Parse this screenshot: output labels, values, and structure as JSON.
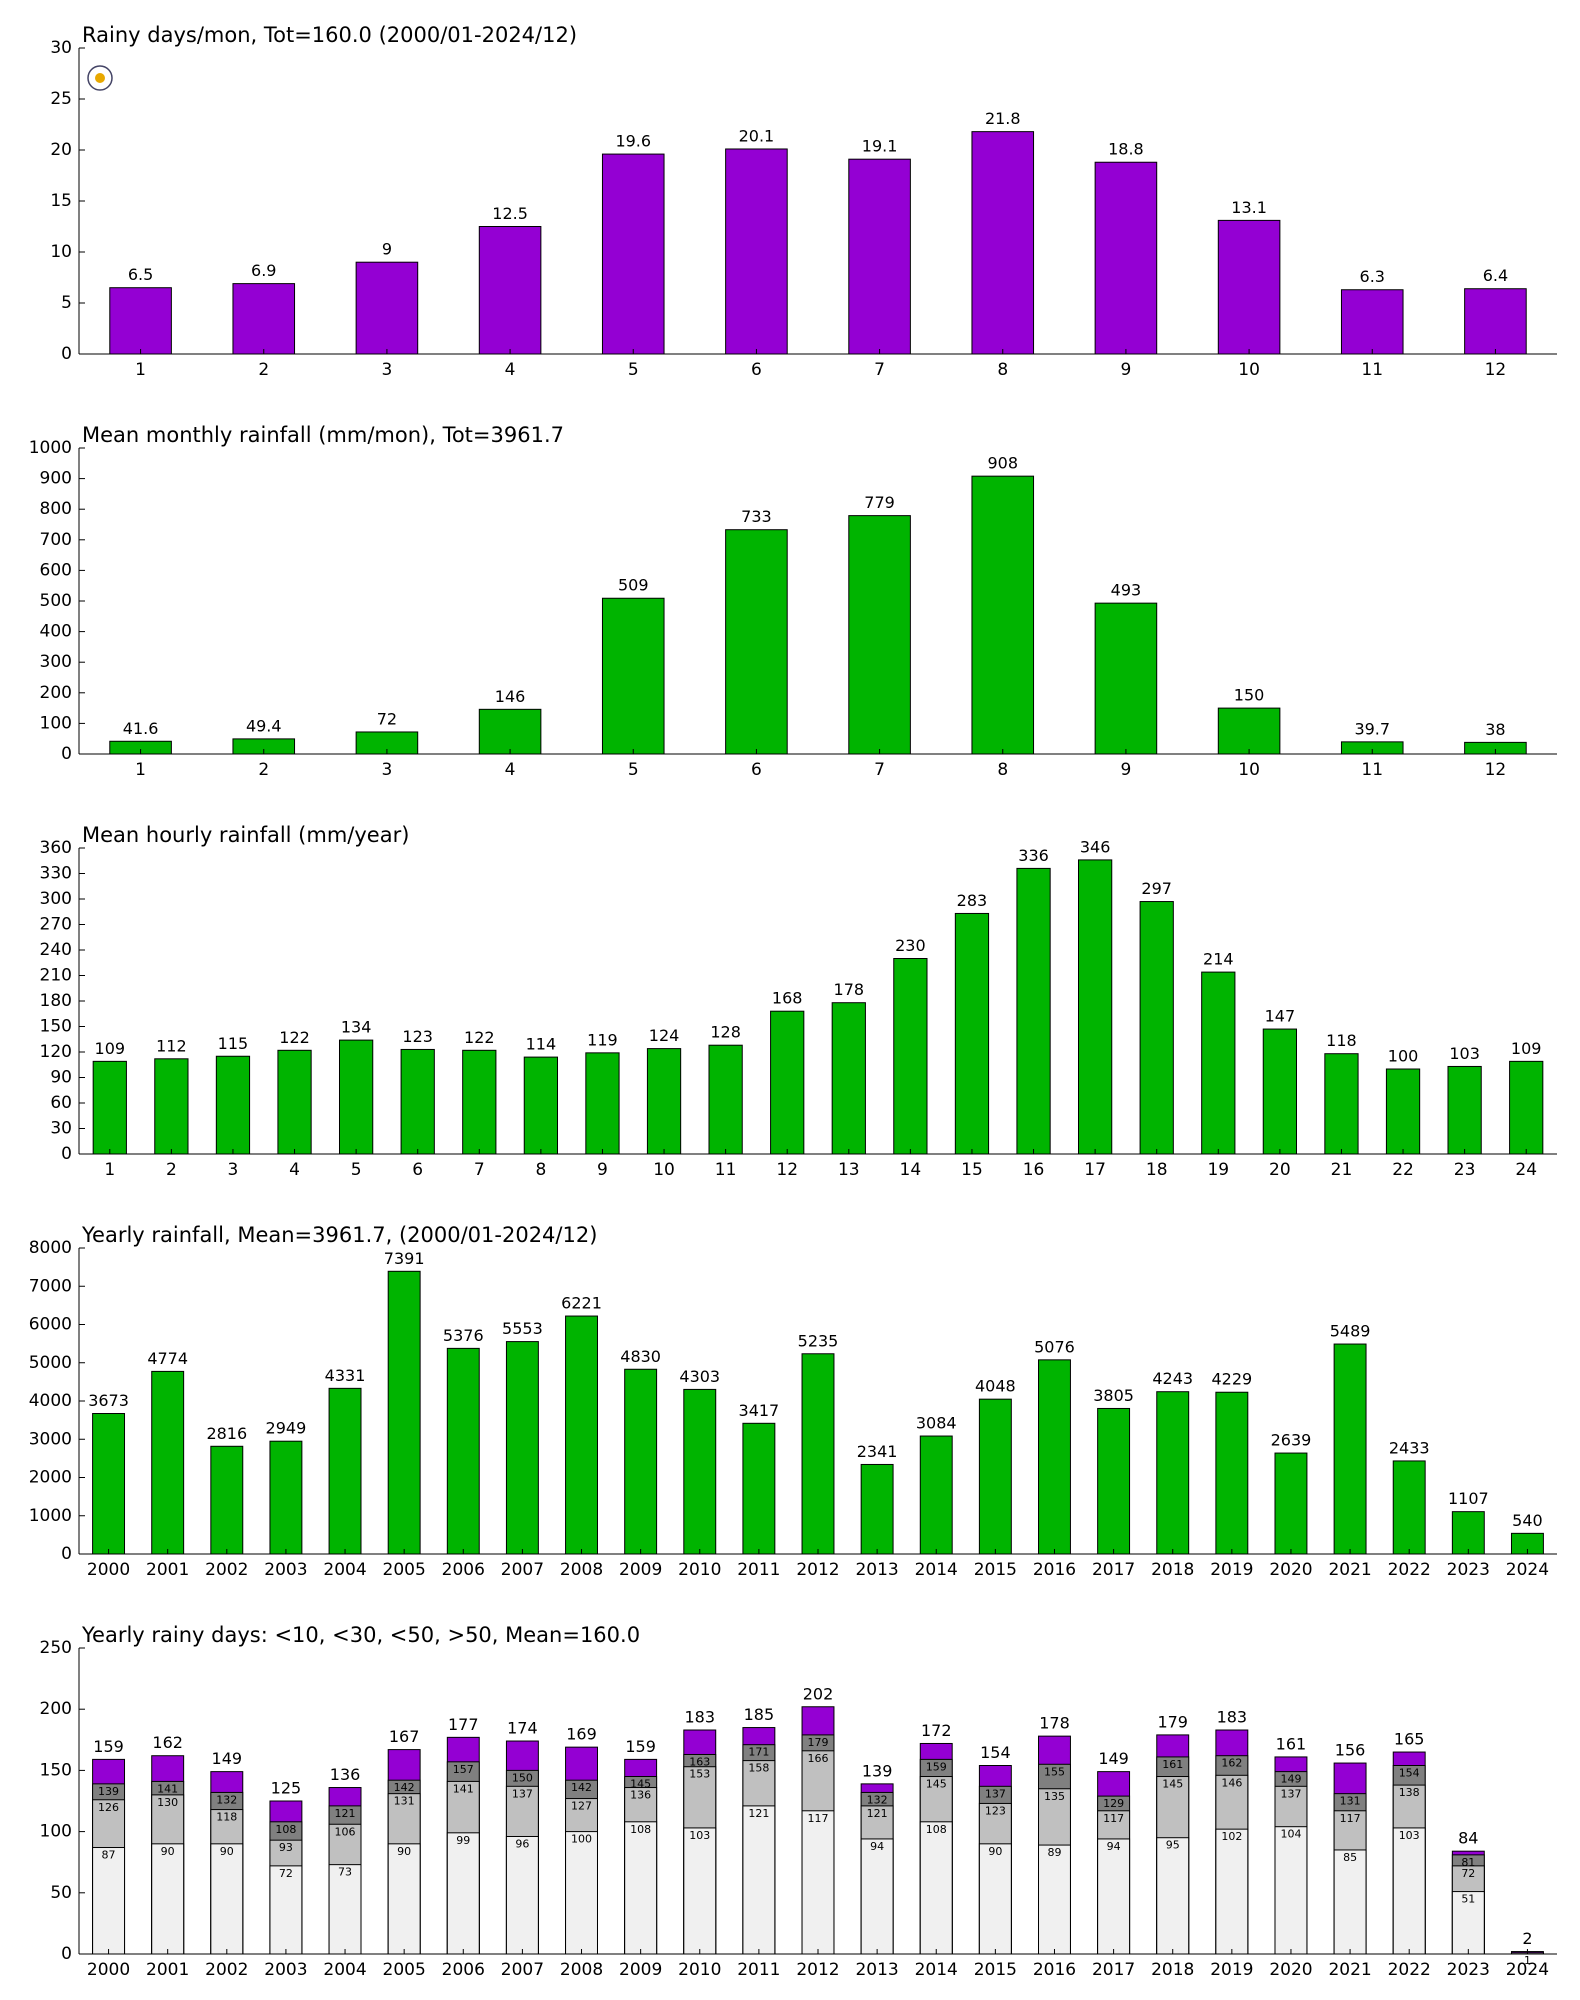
{
  "chart_data": [
    {
      "type": "bar",
      "title": "Rainy days/mon, Tot=160.0 (2000/01-2024/12)",
      "categories": [
        "1",
        "2",
        "3",
        "4",
        "5",
        "6",
        "7",
        "8",
        "9",
        "10",
        "11",
        "12"
      ],
      "values": [
        6.5,
        6.9,
        9,
        12.5,
        19.6,
        20.1,
        19.1,
        21.8,
        18.8,
        13.1,
        6.3,
        6.4
      ],
      "color": "#9400d3",
      "ylim": [
        0,
        30
      ],
      "yticks": [
        0,
        5,
        10,
        15,
        20,
        25,
        30
      ]
    },
    {
      "type": "bar",
      "title": "Mean monthly rainfall (mm/mon), Tot=3961.7",
      "categories": [
        "1",
        "2",
        "3",
        "4",
        "5",
        "6",
        "7",
        "8",
        "9",
        "10",
        "11",
        "12"
      ],
      "values": [
        41.6,
        49.4,
        72,
        146,
        509,
        733,
        779,
        908,
        493,
        150,
        39.7,
        38
      ],
      "color": "#00b400",
      "ylim": [
        0,
        1000
      ],
      "yticks": [
        0,
        100,
        200,
        300,
        400,
        500,
        600,
        700,
        800,
        900,
        1000
      ]
    },
    {
      "type": "bar",
      "title": "Mean hourly rainfall (mm/year)",
      "categories": [
        "1",
        "2",
        "3",
        "4",
        "5",
        "6",
        "7",
        "8",
        "9",
        "10",
        "11",
        "12",
        "13",
        "14",
        "15",
        "16",
        "17",
        "18",
        "19",
        "20",
        "21",
        "22",
        "23",
        "24"
      ],
      "values": [
        109,
        112,
        115,
        122,
        134,
        123,
        122,
        114,
        119,
        124,
        128,
        168,
        178,
        230,
        283,
        336,
        346,
        297,
        214,
        147,
        118,
        100,
        103,
        109
      ],
      "color": "#00b400",
      "ylim": [
        0,
        360
      ],
      "yticks": [
        0,
        30,
        60,
        90,
        120,
        150,
        180,
        210,
        240,
        270,
        300,
        330,
        360
      ]
    },
    {
      "type": "bar",
      "title": "Yearly rainfall, Mean=3961.7, (2000/01-2024/12)",
      "categories": [
        "2000",
        "2001",
        "2002",
        "2003",
        "2004",
        "2005",
        "2006",
        "2007",
        "2008",
        "2009",
        "2010",
        "2011",
        "2012",
        "2013",
        "2014",
        "2015",
        "2016",
        "2017",
        "2018",
        "2019",
        "2020",
        "2021",
        "2022",
        "2023",
        "2024"
      ],
      "values": [
        3673,
        4774,
        2816,
        2949,
        4331,
        7391,
        5376,
        5553,
        6221,
        4830,
        4303,
        3417,
        5235,
        2341,
        3084,
        4048,
        5076,
        3805,
        4243,
        4229,
        2639,
        5489,
        2433,
        1107,
        540
      ],
      "color": "#00b400",
      "ylim": [
        0,
        8000
      ],
      "yticks": [
        0,
        1000,
        2000,
        3000,
        4000,
        5000,
        6000,
        7000,
        8000
      ]
    },
    {
      "type": "bar",
      "title": "Yearly rainy days: <10, <30, <50, >50, Mean=160.0",
      "categories": [
        "2000",
        "2001",
        "2002",
        "2003",
        "2004",
        "2005",
        "2006",
        "2007",
        "2008",
        "2009",
        "2010",
        "2011",
        "2012",
        "2013",
        "2014",
        "2015",
        "2016",
        "2017",
        "2018",
        "2019",
        "2020",
        "2021",
        "2022",
        "2023",
        "2024"
      ],
      "series": [
        {
          "color": "#9400d3",
          "values": [
            159,
            162,
            149,
            125,
            136,
            167,
            177,
            174,
            169,
            159,
            183,
            185,
            202,
            139,
            172,
            154,
            178,
            149,
            179,
            183,
            161,
            156,
            165,
            84,
            2
          ]
        },
        {
          "color": "#808080",
          "values": [
            139,
            141,
            132,
            108,
            121,
            142,
            157,
            150,
            142,
            145,
            163,
            171,
            179,
            132,
            159,
            137,
            155,
            129,
            161,
            162,
            149,
            131,
            154,
            81,
            null
          ]
        },
        {
          "color": "#c0c0c0",
          "values": [
            126,
            130,
            118,
            93,
            106,
            131,
            141,
            137,
            127,
            136,
            153,
            158,
            166,
            121,
            145,
            123,
            135,
            117,
            145,
            146,
            137,
            117,
            138,
            72,
            null
          ]
        },
        {
          "color": "#f0f0f0",
          "values": [
            87,
            90,
            90,
            72,
            73,
            90,
            99,
            96,
            100,
            108,
            103,
            121,
            117,
            94,
            108,
            90,
            89,
            94,
            95,
            102,
            104,
            85,
            103,
            51,
            1
          ]
        }
      ],
      "ylim": [
        0,
        250
      ],
      "yticks": [
        0,
        50,
        100,
        150,
        200,
        250
      ]
    }
  ]
}
